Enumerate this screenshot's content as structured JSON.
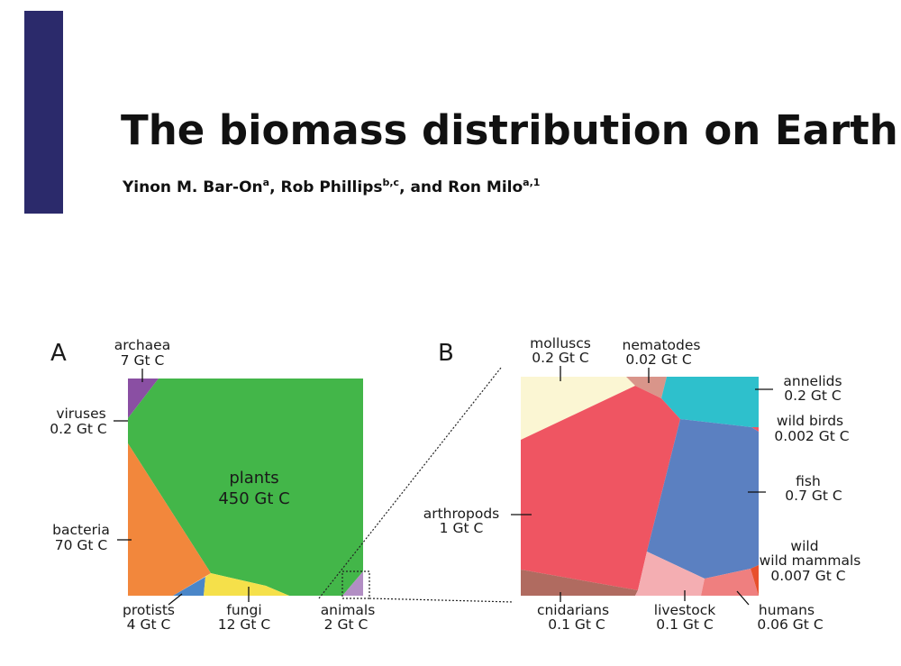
{
  "paper": {
    "title": "The biomass distribution on Earth",
    "authors": [
      {
        "name": "Yinon M. Bar-On",
        "affil": "a",
        "sep": ", "
      },
      {
        "name": "Rob Phillips",
        "affil": "b,c",
        "sep": ", and "
      },
      {
        "name": "Ron Milo",
        "affil": "a,1",
        "sep": ""
      }
    ]
  },
  "colors": {
    "side_bar": "#2b2a6b",
    "archaea": "#8a4fa3",
    "plants": "#43b649",
    "bacteria": "#f2873c",
    "protists": "#4a86c8",
    "fungi": "#f5e04a",
    "animals": "#b28ec4",
    "molluscs": "#fbf6d3",
    "nematodes": "#d9958a",
    "annelids": "#2ec0cc",
    "arthropods": "#ef5562",
    "fish": "#5b80c1",
    "cnidarians": "#b06b60",
    "livestock": "#f4aeb2",
    "humans": "#ef7f7f",
    "wild_mammals": "#e8502c"
  },
  "chart_data": [
    {
      "type": "voronoi-treemap",
      "panel": "A",
      "unit": "Gt C",
      "cells": [
        {
          "name": "plants",
          "value": 450,
          "value_label": "450 Gt C"
        },
        {
          "name": "bacteria",
          "value": 70,
          "value_label": "70 Gt C"
        },
        {
          "name": "fungi",
          "value": 12,
          "value_label": "12 Gt C"
        },
        {
          "name": "archaea",
          "value": 7,
          "value_label": "7 Gt C"
        },
        {
          "name": "protists",
          "value": 4,
          "value_label": "4 Gt C"
        },
        {
          "name": "animals",
          "value": 2,
          "value_label": "2 Gt C"
        },
        {
          "name": "viruses",
          "value": 0.2,
          "value_label": "0.2 Gt C"
        }
      ]
    },
    {
      "type": "voronoi-treemap",
      "panel": "B",
      "unit": "Gt C",
      "cells": [
        {
          "name": "arthropods",
          "value": 1,
          "value_label": "1 Gt C"
        },
        {
          "name": "fish",
          "value": 0.7,
          "value_label": "0.7 Gt C"
        },
        {
          "name": "molluscs",
          "value": 0.2,
          "value_label": "0.2 Gt C"
        },
        {
          "name": "annelids",
          "value": 0.2,
          "value_label": "0.2 Gt C"
        },
        {
          "name": "cnidarians",
          "value": 0.1,
          "value_label": "0.1 Gt C"
        },
        {
          "name": "livestock",
          "value": 0.1,
          "value_label": "0.1 Gt C"
        },
        {
          "name": "humans",
          "value": 0.06,
          "value_label": "0.06 Gt C"
        },
        {
          "name": "nematodes",
          "value": 0.02,
          "value_label": "0.02 Gt C"
        },
        {
          "name": "wild mammals",
          "value": 0.007,
          "value_label": "0.007 Gt C"
        },
        {
          "name": "wild birds",
          "value": 0.002,
          "value_label": "0.002 Gt C"
        }
      ]
    }
  ]
}
